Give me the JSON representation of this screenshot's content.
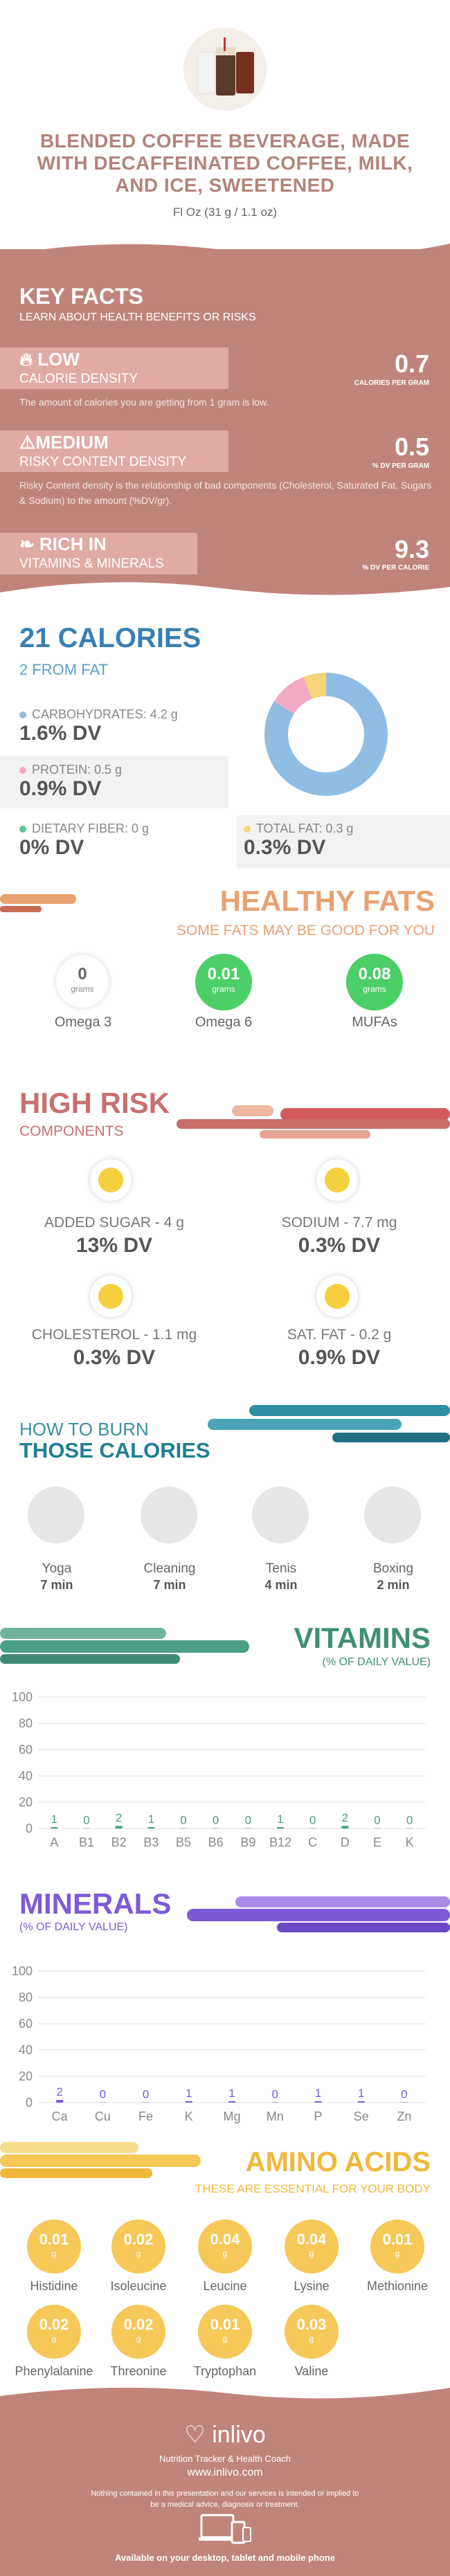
{
  "header": {
    "title": "BLENDED COFFEE BEVERAGE, MADE WITH DECAFFEINATED COFFEE, MILK, AND ICE, SWEETENED",
    "serving": "Fl Oz (31 g / 1.1 oz)"
  },
  "key_facts": {
    "title": "KEY FACTS",
    "subtitle": "LEARN ABOUT HEALTH BENEFITS OR RISKS",
    "items": [
      {
        "level": "LOW",
        "name": "CALORIE DENSITY",
        "value": "0.7",
        "unit": "CALORIES PER GRAM",
        "desc": "The amount of calories you are getting from 1 gram is low."
      },
      {
        "level": "MEDIUM",
        "name": "RISKY CONTENT DENSITY",
        "value": "0.5",
        "unit": "% DV PER GRAM",
        "desc": "Risky Content density is the relationship of bad components (Cholesterol, Saturated Fat, Sugars & Sodium) to the amount (%DV/gr)."
      },
      {
        "level": "RICH  IN",
        "name": "VITAMINS & MINERALS",
        "value": "9.3",
        "unit": "% DV PER CALORIE"
      }
    ]
  },
  "calories": {
    "title": "21 CALORIES",
    "from_fat": "2 FROM FAT",
    "carbs": {
      "label": "CARBOHYDRATES: 4.2 g",
      "dv": "1.6% DV"
    },
    "protein": {
      "label": "PROTEIN: 0.5 g",
      "dv": "0.9% DV"
    },
    "fiber": {
      "label": "DIETARY FIBER: 0 g",
      "dv": "0% DV"
    },
    "fat": {
      "label": "TOTAL FAT: 0.3 g",
      "dv": "0.3% DV"
    }
  },
  "fats": {
    "title": "HEALTHY FATS",
    "subtitle": "SOME FATS MAY BE GOOD FOR YOU",
    "items": [
      {
        "value": "0",
        "unit": "grams",
        "name": "Omega 3"
      },
      {
        "value": "0.01",
        "unit": "grams",
        "name": "Omega 6"
      },
      {
        "value": "0.08",
        "unit": "grams",
        "name": "MUFAs"
      }
    ]
  },
  "high_risk": {
    "title": "HIGH RISK",
    "subtitle": "COMPONENTS",
    "items": [
      {
        "label": "ADDED SUGAR - 4 g",
        "dv": "13% DV"
      },
      {
        "label": "SODIUM - 7.7 mg",
        "dv": "0.3% DV"
      },
      {
        "label": "CHOLESTEROL - 1.1 mg",
        "dv": "0.3% DV"
      },
      {
        "label": "SAT. FAT - 0.2 g",
        "dv": "0.9% DV"
      }
    ]
  },
  "burn": {
    "title_line1": "HOW TO BURN",
    "title_line2": "THOSE CALORIES",
    "items": [
      {
        "name": "Yoga",
        "time": "7 min"
      },
      {
        "name": "Cleaning",
        "time": "7 min"
      },
      {
        "name": "Tenis",
        "time": "4 min"
      },
      {
        "name": "Boxing",
        "time": "2 min"
      }
    ]
  },
  "vitamins": {
    "title": "VITAMINS",
    "subtitle": "(% OF DAILY VALUE)"
  },
  "minerals": {
    "title": "MINERALS",
    "subtitle": "(% OF DAILY VALUE)"
  },
  "amino": {
    "title": "AMINO ACIDS",
    "subtitle": "THESE ARE ESSENTIAL FOR YOUR BODY",
    "items": [
      {
        "value": "0.01",
        "unit": "g",
        "name": "Histidine"
      },
      {
        "value": "0.02",
        "unit": "g",
        "name": "Isoleucine"
      },
      {
        "value": "0.04",
        "unit": "g",
        "name": "Leucine"
      },
      {
        "value": "0.04",
        "unit": "g",
        "name": "Lysine"
      },
      {
        "value": "0.01",
        "unit": "g",
        "name": "Methionine"
      },
      {
        "value": "0.02",
        "unit": "g",
        "name": "Phenylalanine"
      },
      {
        "value": "0.02",
        "unit": "g",
        "name": "Threonine"
      },
      {
        "value": "0.01",
        "unit": "g",
        "name": "Tryptophan"
      },
      {
        "value": "0.03",
        "unit": "g",
        "name": "Valine"
      }
    ]
  },
  "footer": {
    "brand": "inlivo",
    "tagline": "Nutrition Tracker & Health Coach",
    "url": "www.inlivo.com",
    "disclaimer": "Nothing contained in this presentation and our services is intended or implied to be a medical advice, diagnosis or treatment.",
    "devices": "Available on your desktop, tablet and mobile phone"
  },
  "colors": {
    "brand": "#c0847c",
    "carbs": "#8fbde3",
    "protein": "#f3a9c4",
    "fat": "#f6d47a",
    "fiber": "#5ec59a",
    "vitamins": "#4a9f86",
    "minerals": "#7d5ad8",
    "amino": "#f5c858"
  },
  "chart_data": [
    {
      "type": "pie",
      "categories": [
        "Carbohydrates",
        "Protein",
        "Total Fat"
      ],
      "values": [
        4.2,
        0.5,
        0.3
      ]
    },
    {
      "type": "bar",
      "title": "VITAMINS",
      "ylabel": "(% OF DAILY VALUE)",
      "categories": [
        "A",
        "B1",
        "B2",
        "B3",
        "B5",
        "B6",
        "B9",
        "B12",
        "C",
        "D",
        "E",
        "K"
      ],
      "values": [
        1,
        0,
        2,
        1,
        0,
        0,
        0,
        1,
        0,
        2,
        0,
        0
      ],
      "ylim": [
        0,
        100
      ],
      "yticks": [
        0,
        20,
        40,
        60,
        80,
        100
      ]
    },
    {
      "type": "bar",
      "title": "MINERALS",
      "ylabel": "(% OF DAILY VALUE)",
      "categories": [
        "Ca",
        "Cu",
        "Fe",
        "K",
        "Mg",
        "Mn",
        "P",
        "Se",
        "Zn"
      ],
      "values": [
        2,
        0,
        0,
        1,
        1,
        0,
        1,
        1,
        0
      ],
      "ylim": [
        0,
        100
      ],
      "yticks": [
        0,
        20,
        40,
        60,
        80,
        100
      ]
    }
  ]
}
